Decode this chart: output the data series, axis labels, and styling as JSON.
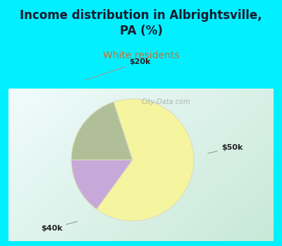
{
  "title": "Income distribution in Albrightsville,\nPA (%)",
  "subtitle": "White residents",
  "title_color": "#1a1a2e",
  "subtitle_color": "#c87030",
  "slices": [
    {
      "label": "$40k",
      "value": 65,
      "color": "#f5f5a0"
    },
    {
      "label": "$20k",
      "value": 15,
      "color": "#c8a8d8"
    },
    {
      "label": "$50k",
      "value": 20,
      "color": "#b0bf98"
    }
  ],
  "startangle": 108,
  "bg_cyan": "#00f0ff",
  "chart_bg_left": "#c8e8d8",
  "chart_bg_right": "#e8f8f8",
  "figsize": [
    4.0,
    3.5
  ],
  "dpi": 100
}
